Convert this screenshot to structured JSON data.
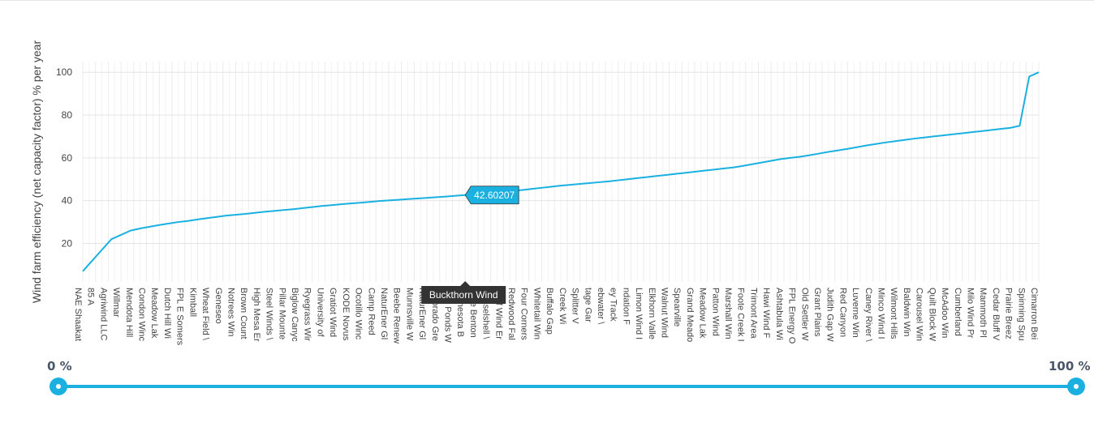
{
  "chart_data": {
    "type": "line",
    "ylabel": "Wind farm efficiency (net capacity factor) % per year",
    "xlabel": "",
    "ylim": [
      2,
      105
    ],
    "yticks": [
      20,
      40,
      60,
      80,
      100
    ],
    "grid": true,
    "series_color": "#1ab0e0",
    "categories": [
      "NAE Shaakat",
      "85 A",
      "Agriwind LLC",
      "Willmar",
      "Mendota Hill",
      "Condon Winc",
      "Meadow Lak",
      "Dutch Hill Wi",
      "FPL E Somers",
      "Kimball",
      "Wheat Field \\",
      "Geneseo",
      "Notrees Win",
      "Brown Count",
      "High Mesa Er",
      "Steel Winds \\",
      "Pillar Mounte",
      "Biglow Canyc",
      "Ryegrass Wir",
      "University of",
      "Gratiot Wind",
      "KODE Novus",
      "Ocotillo Winc",
      "Camp Reed",
      "NaturEner Gl",
      "Beebe Renew",
      "Munnsville W",
      "NaturEner Gl",
      "Colorado Gre",
      "Two Ponds W",
      "Minnesota B",
      "Lake Benton",
      "Musselshell \\",
      "Wolf Wind Er",
      "Redwood Fal",
      "Four Corners",
      "Whitetail Win",
      "Buffalo Gap",
      "Creek Wi",
      "Splitter V",
      "tage Gar",
      "ebwater \\",
      "ey Track",
      "ndation F",
      "Limon Wind I",
      "Elkhorn Valle",
      "Walnut Wind",
      "Spearville",
      "Grand Meado",
      "Meadow Lak",
      "Patton Wind",
      "Marshall Win",
      "Foote Creek I",
      "Trimont Area",
      "Hawi Wind F",
      "Ashtabula Wi",
      "FPL Energy O",
      "Old Settler W",
      "Grant Plains",
      "Judith Gap W",
      "Red Canyon",
      "Luverne Win",
      "Caney River \\",
      "Minco Wind I",
      "Wilmont Hills",
      "Baldwin Win",
      "Carousel Win",
      "Quilt Block W",
      "McAdoo Win",
      "Cumberland",
      "Milo Wind Pr",
      "Mammoth Pl",
      "Cedar Bluff V",
      "Prairie Breez",
      "Spinning Spu",
      "Cimarron Bei"
    ],
    "x": [
      0,
      1,
      2,
      3,
      4,
      5,
      6,
      7,
      8,
      9,
      10,
      11,
      12,
      13,
      14,
      15,
      16,
      17,
      18,
      19,
      20,
      21,
      22,
      23,
      24,
      25,
      26,
      27,
      28,
      29,
      30,
      31,
      32,
      33,
      34,
      35,
      36,
      37,
      38,
      39,
      40,
      41,
      42,
      43,
      44,
      45,
      46,
      47,
      48,
      49,
      50,
      51,
      52,
      53,
      54,
      55,
      56,
      57,
      58,
      59,
      60,
      61,
      62,
      63,
      64,
      65,
      66,
      67,
      68,
      69,
      70,
      71,
      72,
      73,
      74,
      75,
      76,
      77,
      78,
      79,
      80,
      81,
      82,
      83,
      84,
      85,
      86,
      87,
      88,
      89,
      90,
      91,
      92,
      93,
      94,
      95,
      96,
      97,
      98,
      99,
      100
    ],
    "values": [
      7,
      12,
      17,
      22,
      24,
      26,
      27,
      27.8,
      28.6,
      29.3,
      30,
      30.5,
      31.2,
      31.8,
      32.4,
      33,
      33.4,
      33.8,
      34.3,
      34.8,
      35.2,
      35.6,
      36,
      36.5,
      37,
      37.5,
      37.9,
      38.3,
      38.7,
      39,
      39.4,
      39.8,
      40.1,
      40.4,
      40.7,
      41,
      41.3,
      41.6,
      41.9,
      42.3,
      42.6,
      43,
      43.4,
      43.8,
      44.2,
      44.6,
      45,
      45.5,
      46,
      46.5,
      47,
      47.4,
      47.8,
      48.2,
      48.6,
      49,
      49.5,
      50,
      50.5,
      51,
      51.5,
      52,
      52.5,
      53,
      53.5,
      54,
      54.5,
      55,
      55.5,
      56.2,
      57,
      57.8,
      58.6,
      59.4,
      60,
      60.5,
      61.2,
      62,
      62.8,
      63.5,
      64.2,
      65,
      65.8,
      66.5,
      67.2,
      67.8,
      68.4,
      69,
      69.5,
      70,
      70.5,
      71,
      71.5,
      72,
      72.5,
      73,
      73.5,
      74,
      75,
      98,
      100
    ],
    "tooltip": {
      "category": "Buckthorn Wind",
      "value": "42.60207",
      "x": 40
    }
  },
  "range_slider": {
    "min_label": "0 %",
    "max_label": "100 %"
  }
}
